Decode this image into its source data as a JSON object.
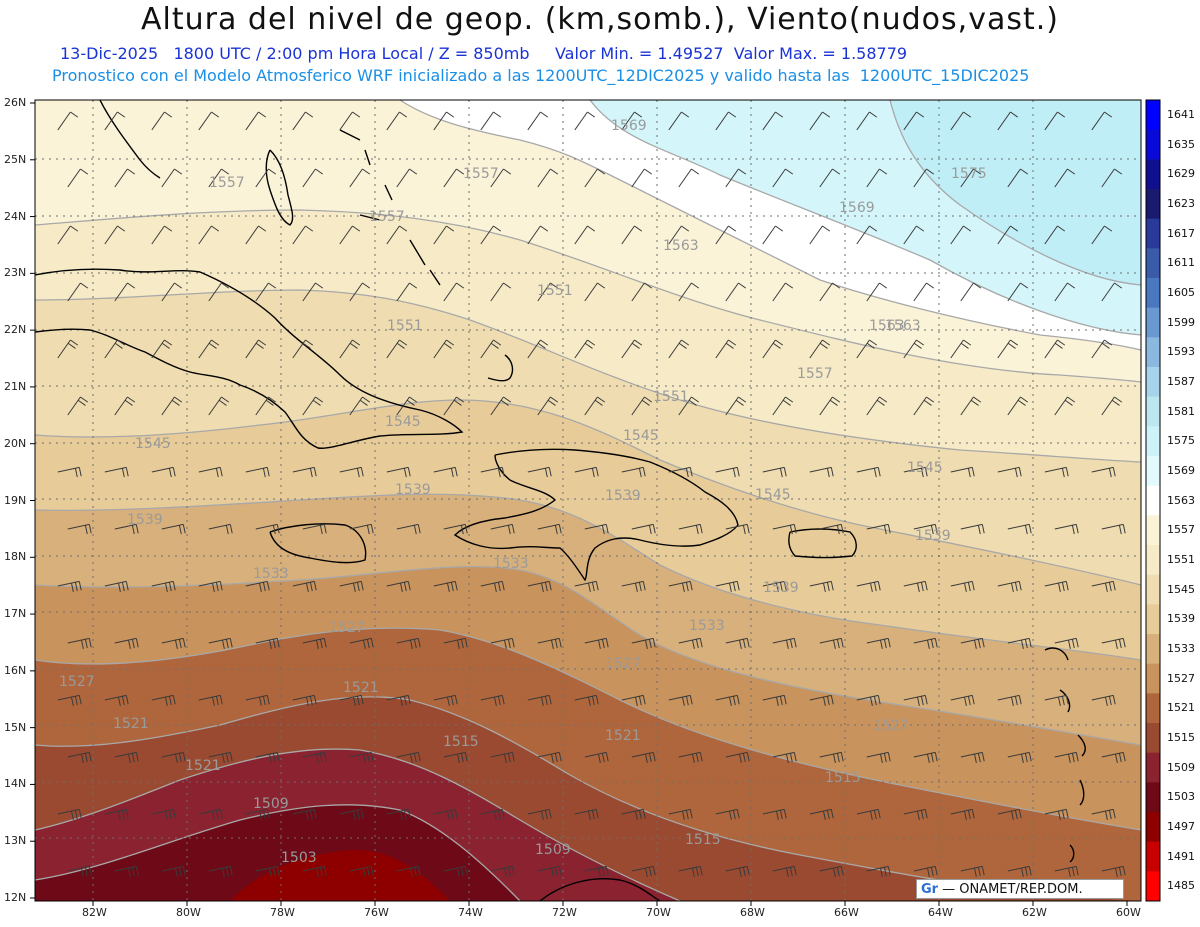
{
  "header": {
    "title": "Altura del nivel de geop. (km,somb.), Viento(nudos,vast.)",
    "subtitle_line1": "13-Dic-2025   1800 UTC / 2:00 pm Hora Local / Z = 850mb     Valor Min. = 1.49527  Valor Max. = 1.58779",
    "subtitle_line2": "Pronostico con el Modelo Atmosferico WRF inicializado a las 1200UTC_12DIC2025 y valido hasta las  1200UTC_15DIC2025"
  },
  "axes": {
    "lat_labels": [
      "26N",
      "25N",
      "24N",
      "23N",
      "22N",
      "21N",
      "20N",
      "19N",
      "18N",
      "17N",
      "16N",
      "15N",
      "14N",
      "13N",
      "12N"
    ],
    "lon_labels": [
      "82W",
      "80W",
      "78W",
      "76W",
      "74W",
      "72W",
      "70W",
      "68W",
      "66W",
      "64W",
      "62W",
      "60W"
    ]
  },
  "colorbar": {
    "levels": [
      "1641",
      "1635",
      "1629",
      "1623",
      "1617",
      "1611",
      "1605",
      "1599",
      "1593",
      "1587",
      "1581",
      "1575",
      "1569",
      "1563",
      "1557",
      "1551",
      "1545",
      "1539",
      "1533",
      "1527",
      "1521",
      "1515",
      "1509",
      "1503",
      "1497",
      "1491",
      "1485"
    ],
    "colors": [
      "#0000ff",
      "#0a0ad8",
      "#10108f",
      "#1a1a70",
      "#2a3a9a",
      "#3a5aaa",
      "#4a78c0",
      "#6a98d0",
      "#8ab8de",
      "#a6d4ea",
      "#bce6f0",
      "#cdf2f8",
      "#e2fafc",
      "#ffffff",
      "#fbf3d8",
      "#f6ebc6",
      "#efdcb0",
      "#e7cc9a",
      "#d8b07c",
      "#c8935c",
      "#b0663c",
      "#9a4a30",
      "#8a2230",
      "#6e0a18",
      "#8e0000",
      "#c80000",
      "#ff0000"
    ]
  },
  "contour_labels": [
    "1569",
    "1575",
    "1569",
    "1563",
    "1563",
    "1557",
    "1557",
    "1557",
    "1551",
    "1563",
    "1557",
    "1551",
    "1545",
    "1545",
    "1551",
    "1545",
    "1545",
    "1539",
    "1539",
    "1545",
    "1539",
    "1539",
    "1533",
    "1539",
    "1533",
    "1527",
    "1527",
    "1533",
    "1527",
    "1521",
    "1521",
    "1527",
    "1521",
    "1515",
    "1515",
    "1521",
    "1509",
    "1515",
    "1509",
    "1503"
  ],
  "credit": {
    "logo_text": "Gr",
    "text": "— ONAMET/REP.DOM."
  },
  "colors": {
    "coast": "#000000",
    "barb": "#333333",
    "contour_line": "#a8a8a8",
    "contour_label": "#9a9a9a",
    "grid": "#666666"
  }
}
